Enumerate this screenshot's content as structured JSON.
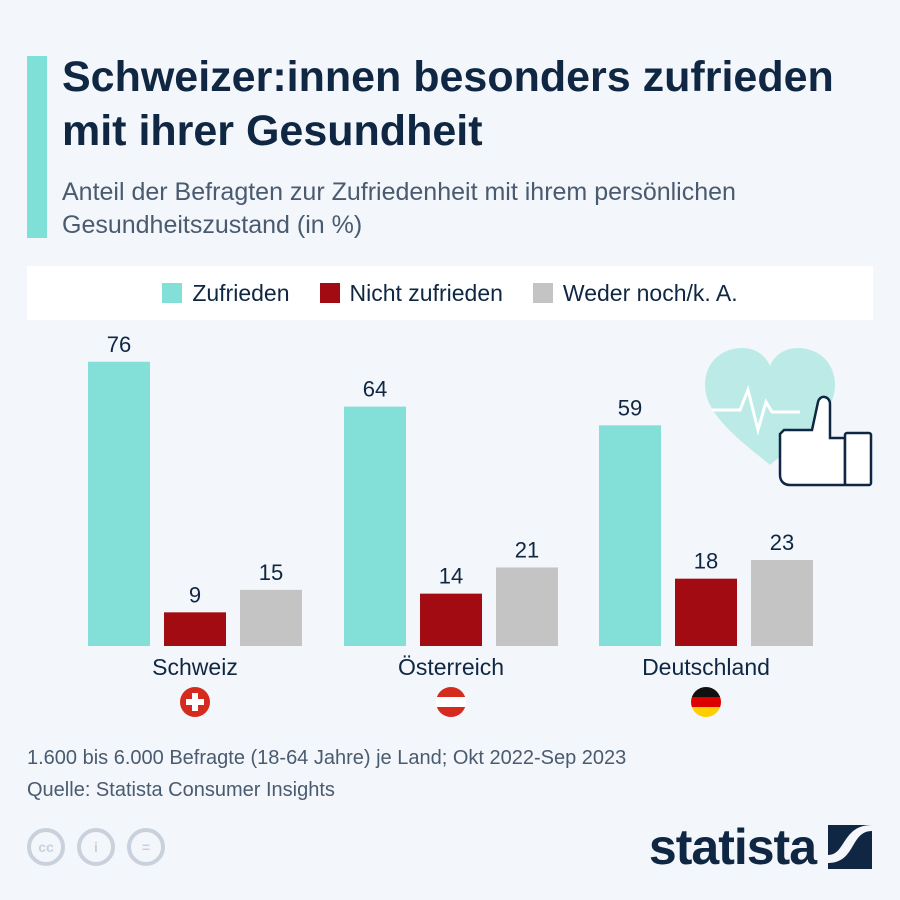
{
  "header": {
    "title": "Schweizer:innen besonders zufrieden mit ihrer Gesundheit",
    "subtitle": "Anteil der Befragten zur Zufriedenheit mit ihrem persönlichen Gesundheitszustand (in %)"
  },
  "chart_data": {
    "type": "bar",
    "categories": [
      "Schweiz",
      "Österreich",
      "Deutschland"
    ],
    "series": [
      {
        "name": "Zufrieden",
        "values": [
          76,
          64,
          59
        ],
        "color": "#82e0d9"
      },
      {
        "name": "Nicht zufrieden",
        "values": [
          9,
          14,
          18
        ],
        "color": "#a30b13"
      },
      {
        "name": "Weder noch/k. A.",
        "values": [
          15,
          21,
          23
        ],
        "color": "#c4c4c4"
      }
    ],
    "ylim": [
      0,
      80
    ],
    "grid": false,
    "legend_placement": "top",
    "flags": [
      "swiss-flag-icon",
      "austria-flag-icon",
      "germany-flag-icon"
    ]
  },
  "footer": {
    "note": "1.600 bis 6.000 Befragte (18-64 Jahre) je Land; Okt 2022-Sep 2023",
    "source": "Quelle: Statista Consumer Insights",
    "logo": "statista",
    "cc_icons": [
      "cc-icon",
      "by-icon",
      "nd-icon"
    ]
  }
}
